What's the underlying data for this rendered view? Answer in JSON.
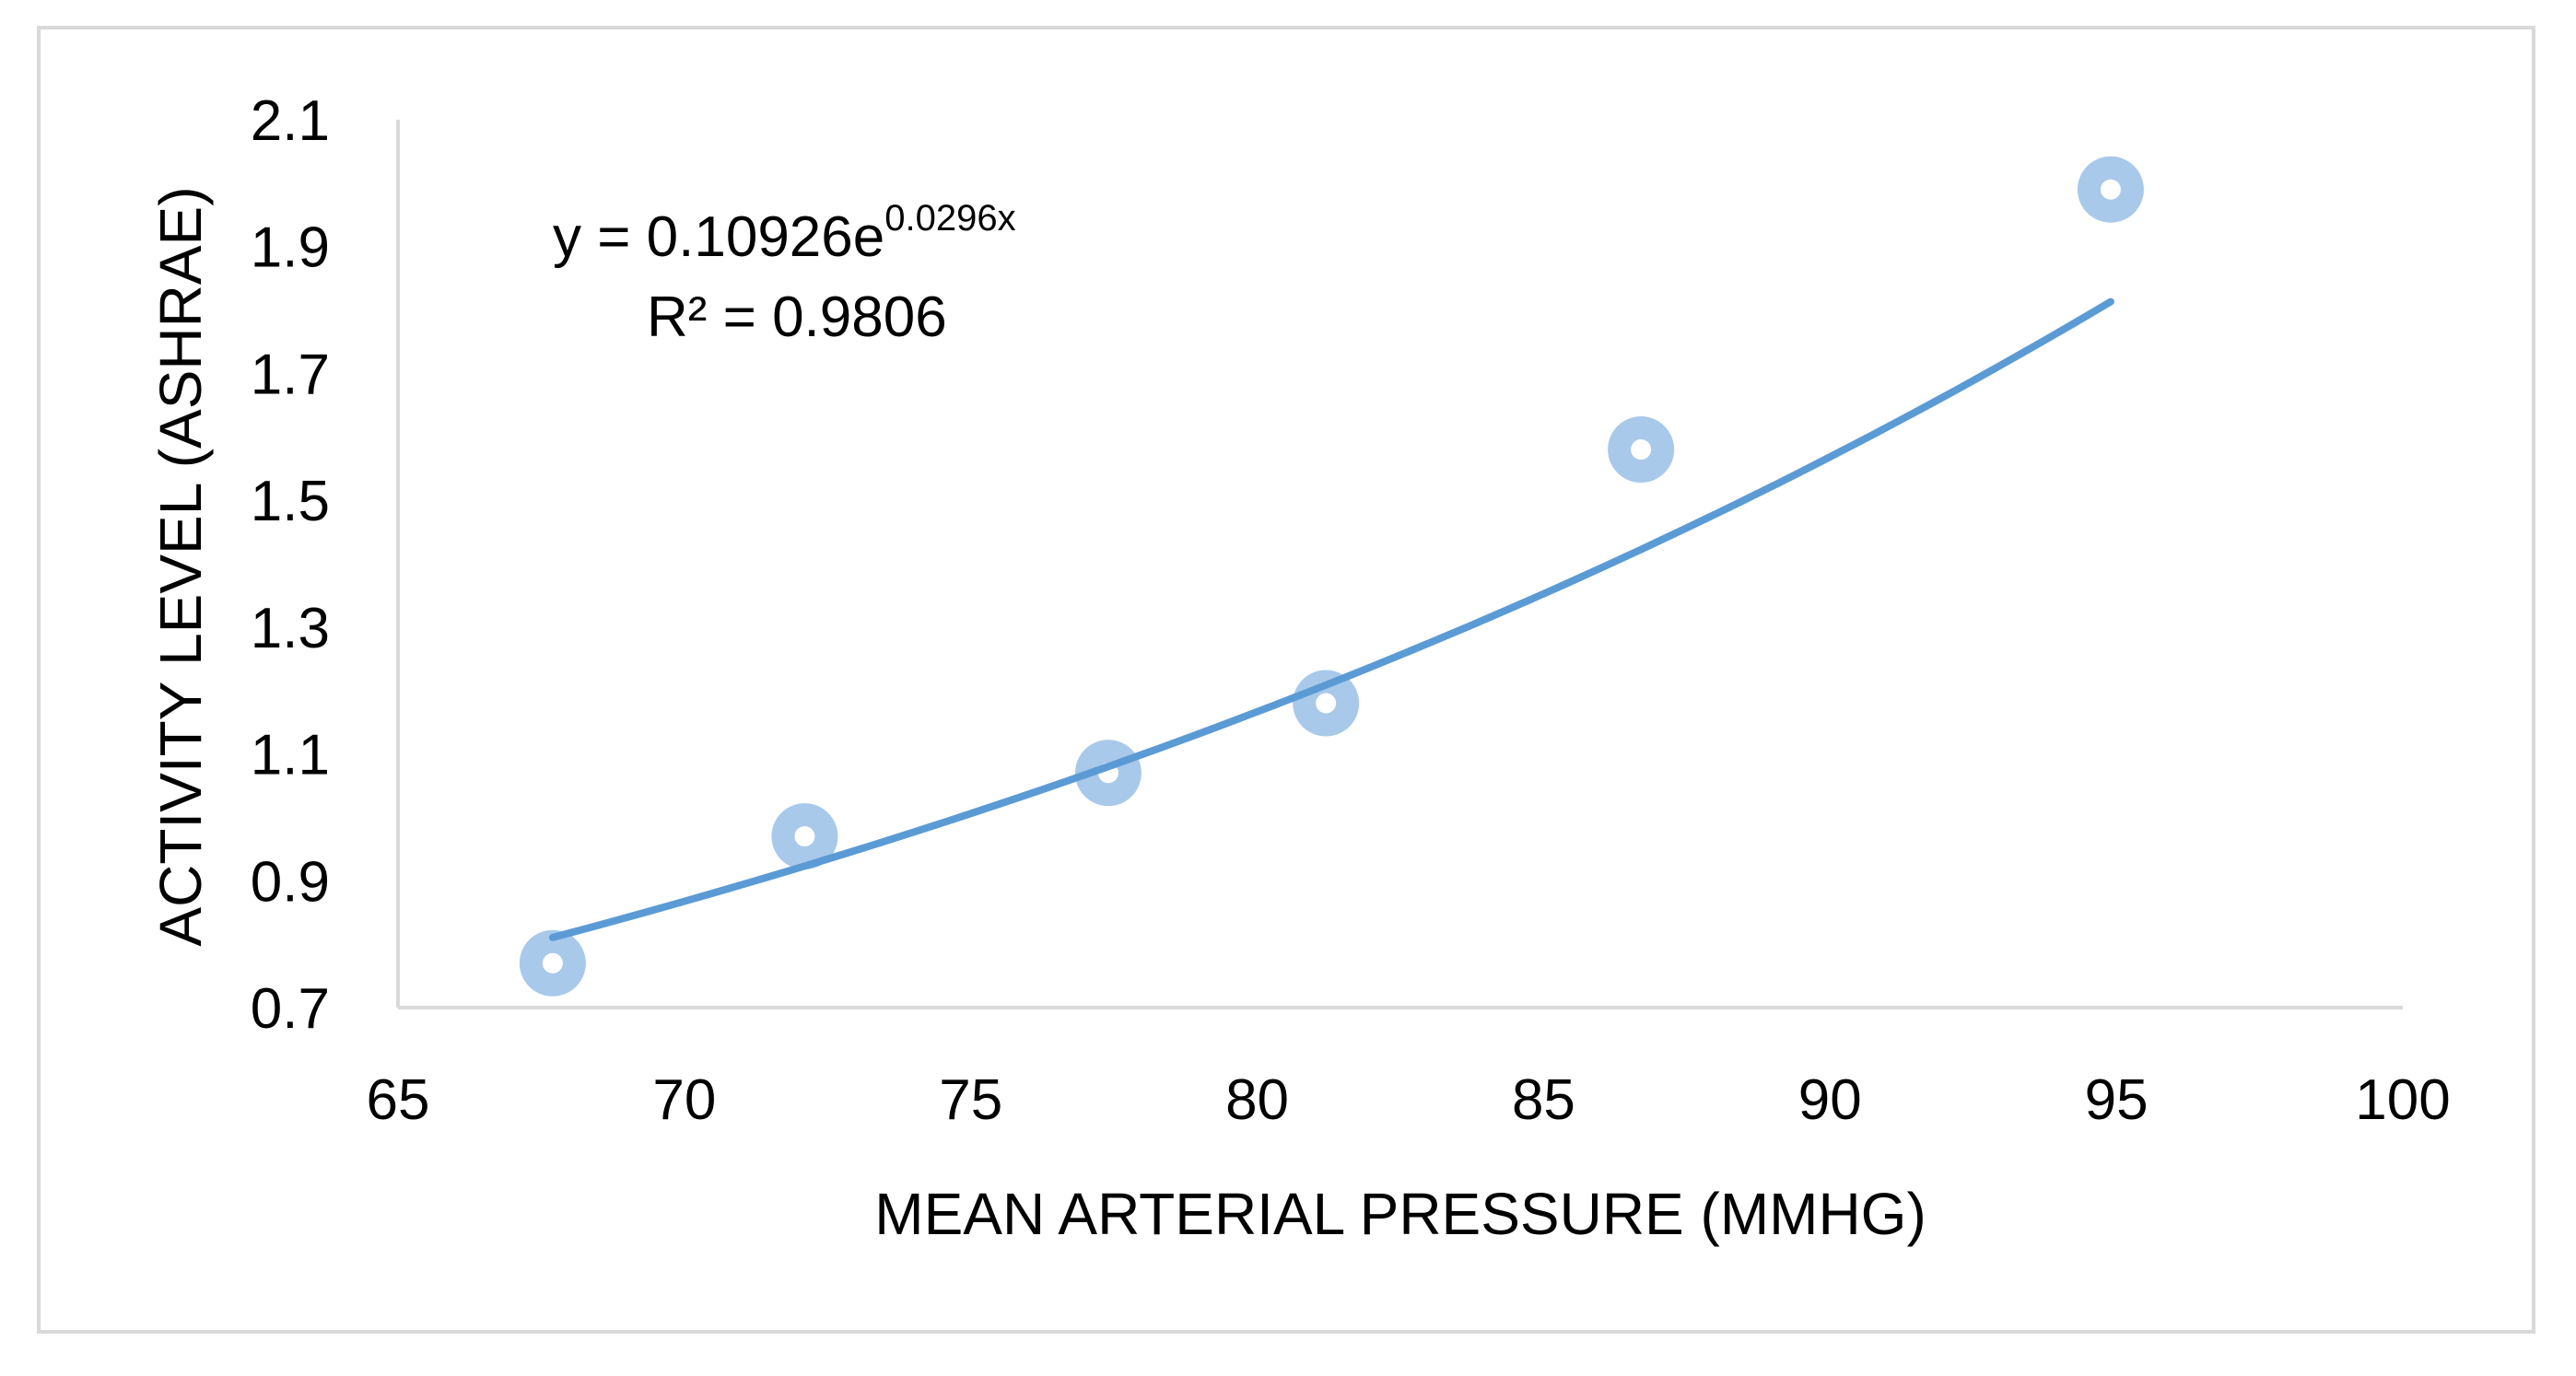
{
  "chart_data": {
    "type": "scatter",
    "title": "",
    "xlabel": "MEAN ARTERIAL PRESSURE (MMHG)",
    "ylabel": "ACTIVITY LEVEL (ASHRAE)",
    "xlim": [
      65,
      100
    ],
    "ylim": [
      0.7,
      2.1
    ],
    "x_ticks": [
      65,
      70,
      75,
      80,
      85,
      90,
      95,
      100
    ],
    "y_ticks": [
      0.7,
      0.9,
      1.1,
      1.3,
      1.5,
      1.7,
      1.9,
      2.1
    ],
    "x_tick_labels": [
      "65",
      "70",
      "75",
      "80",
      "85",
      "90",
      "95",
      "100"
    ],
    "y_tick_labels": [
      "0.7",
      "0.9",
      "1.1",
      "1.3",
      "1.5",
      "1.7",
      "1.9",
      "2.1"
    ],
    "series": [
      {
        "name": "Activity level",
        "x": [
          67.7,
          72.1,
          77.4,
          81.2,
          86.7,
          94.9
        ],
        "y": [
          0.77,
          0.97,
          1.07,
          1.18,
          1.58,
          1.99
        ]
      }
    ],
    "trendline": {
      "type": "exponential",
      "a": 0.10926,
      "b": 0.0296,
      "x_range": [
        67.7,
        94.9
      ],
      "equation_base": "y = 0.10926e",
      "equation_exponent": "0.0296x",
      "r_squared_label": "R² = 0.9806"
    },
    "colors": {
      "marker": "#a9c9ea",
      "marker_center": "#ffffff",
      "trendline": "#5b9bd5",
      "axis": "#d9d9d9",
      "frame": "#d9d9d9"
    },
    "grid": false,
    "legend": "none"
  }
}
